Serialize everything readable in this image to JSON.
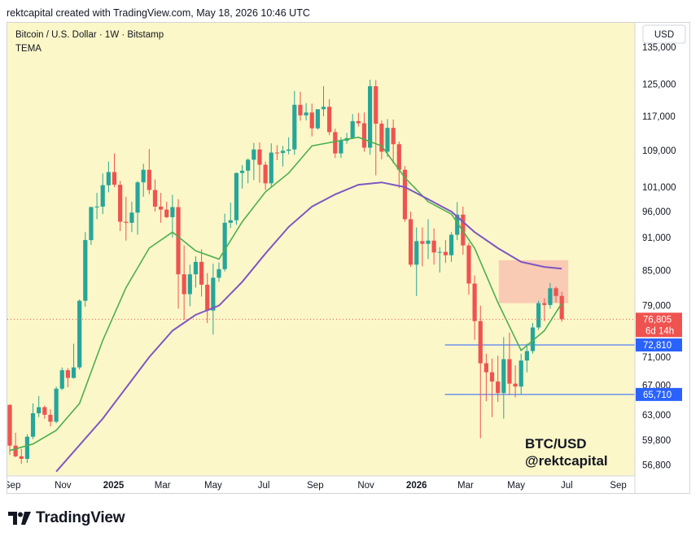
{
  "header": {
    "caption": "rektcapital created with TradingView.com, May 18, 2026 10:46 UTC"
  },
  "footer": {
    "brand": "TradingView"
  },
  "colors": {
    "background": "#fcf7c8",
    "up": "#26a69a",
    "down": "#ef5350",
    "fast_ema": "#4caf50",
    "slow_ema": "#7e57c2",
    "support": "#2962ff",
    "resistance_zone": "#f8c3b0"
  },
  "chart_data": {
    "type": "candlestick",
    "title": "Bitcoin / U.S. Dollar · 1W · Bitstamp",
    "indicator": "TEMA",
    "currency": "USD",
    "watermark": [
      "BTC/USD",
      "@rektcapital"
    ],
    "y_scale": "log",
    "ylim": [
      55500,
      142000
    ],
    "y_ticks": [
      135000,
      125000,
      117000,
      109000,
      101000,
      96000,
      91000,
      85000,
      79000,
      71000,
      67000,
      63000,
      59800,
      56800
    ],
    "x_range": [
      "2024-08-26",
      "2026-09-21"
    ],
    "x_ticks": [
      {
        "date": "2024-09-01",
        "label": "Sep",
        "bold": false
      },
      {
        "date": "2024-11-01",
        "label": "Nov",
        "bold": false
      },
      {
        "date": "2025-01-01",
        "label": "2025",
        "bold": true
      },
      {
        "date": "2025-03-01",
        "label": "Mar",
        "bold": false
      },
      {
        "date": "2025-05-01",
        "label": "May",
        "bold": false
      },
      {
        "date": "2025-07-01",
        "label": "Jul",
        "bold": false
      },
      {
        "date": "2025-09-01",
        "label": "Sep",
        "bold": false
      },
      {
        "date": "2025-11-01",
        "label": "Nov",
        "bold": false
      },
      {
        "date": "2026-01-01",
        "label": "2026",
        "bold": true
      },
      {
        "date": "2026-03-01",
        "label": "Mar",
        "bold": false
      },
      {
        "date": "2026-05-01",
        "label": "May",
        "bold": false
      },
      {
        "date": "2026-07-01",
        "label": "Jul",
        "bold": false
      },
      {
        "date": "2026-09-01",
        "label": "Sep",
        "bold": false
      }
    ],
    "first_candle_date": "2024-08-26",
    "candles": [
      [
        64300,
        64400,
        58000,
        59100
      ],
      [
        59100,
        60700,
        57700,
        57800
      ],
      [
        57800,
        58700,
        56900,
        57500
      ],
      [
        57500,
        60500,
        57000,
        60200
      ],
      [
        60200,
        64500,
        59900,
        63200
      ],
      [
        63200,
        65500,
        62700,
        64000
      ],
      [
        64000,
        64200,
        62500,
        63000
      ],
      [
        63000,
        63700,
        61500,
        62100
      ],
      [
        62100,
        66800,
        61900,
        66500
      ],
      [
        66500,
        69500,
        66300,
        69100
      ],
      [
        69100,
        69400,
        66700,
        68000
      ],
      [
        68000,
        73000,
        67900,
        69500
      ],
      [
        69500,
        80000,
        69200,
        79800
      ],
      [
        79800,
        92000,
        78800,
        90500
      ],
      [
        90500,
        97000,
        89600,
        96900
      ],
      [
        96900,
        99800,
        94500,
        97000
      ],
      [
        97000,
        103900,
        95500,
        101400
      ],
      [
        101400,
        106500,
        99900,
        104200
      ],
      [
        104200,
        108300,
        101000,
        101500
      ],
      [
        101500,
        102300,
        92200,
        94000
      ],
      [
        94000,
        99000,
        90400,
        93800
      ],
      [
        93800,
        98000,
        92000,
        95800
      ],
      [
        95800,
        102300,
        91500,
        102000
      ],
      [
        102000,
        106000,
        99000,
        104700
      ],
      [
        104700,
        109300,
        99500,
        100400
      ],
      [
        100400,
        102600,
        96000,
        97000
      ],
      [
        97000,
        99800,
        93800,
        96400
      ],
      [
        96400,
        98000,
        94700,
        94900
      ],
      [
        94900,
        99400,
        91000,
        96900
      ],
      [
        96900,
        98500,
        78500,
        84300
      ],
      [
        84300,
        89500,
        76700,
        80900
      ],
      [
        80900,
        86000,
        78900,
        84300
      ],
      [
        84300,
        87500,
        82000,
        86500
      ],
      [
        86500,
        88800,
        80500,
        82500
      ],
      [
        82500,
        84500,
        76200,
        78200
      ],
      [
        78200,
        86200,
        74400,
        83700
      ],
      [
        83700,
        86400,
        83000,
        85200
      ],
      [
        85200,
        95600,
        84800,
        93800
      ],
      [
        93800,
        97800,
        92800,
        94300
      ],
      [
        94300,
        104100,
        93400,
        104000
      ],
      [
        104000,
        105700,
        100700,
        104500
      ],
      [
        104500,
        107200,
        101800,
        106900
      ],
      [
        106900,
        110700,
        102500,
        109200
      ],
      [
        109200,
        110800,
        101900,
        105800
      ],
      [
        105800,
        106500,
        100400,
        101800
      ],
      [
        101800,
        110600,
        100900,
        108500
      ],
      [
        108500,
        110200,
        106800,
        108400
      ],
      [
        108400,
        110000,
        105400,
        108900
      ],
      [
        108900,
        112000,
        108100,
        109200
      ],
      [
        109200,
        123300,
        108000,
        119800
      ],
      [
        119800,
        123100,
        115900,
        117200
      ],
      [
        117200,
        120200,
        116000,
        117900
      ],
      [
        117900,
        120100,
        112200,
        114100
      ],
      [
        114100,
        118500,
        113800,
        118700
      ],
      [
        118700,
        124500,
        117000,
        119300
      ],
      [
        119300,
        121200,
        112500,
        113200
      ],
      [
        113200,
        114000,
        107300,
        108300
      ],
      [
        108300,
        112000,
        107300,
        111200
      ],
      [
        111200,
        113000,
        110500,
        111800
      ],
      [
        111800,
        117500,
        111600,
        115800
      ],
      [
        115800,
        117800,
        114500,
        115300
      ],
      [
        115300,
        117900,
        108700,
        109600
      ],
      [
        109600,
        126200,
        108000,
        124500
      ],
      [
        124500,
        126100,
        103500,
        115200
      ],
      [
        115200,
        116000,
        107000,
        108700
      ],
      [
        108700,
        116300,
        107500,
        114200
      ],
      [
        114200,
        116200,
        106100,
        110400
      ],
      [
        110400,
        111000,
        100800,
        104700
      ],
      [
        104700,
        105500,
        94000,
        94500
      ],
      [
        94500,
        96000,
        85600,
        86000
      ],
      [
        86000,
        92900,
        80600,
        90300
      ],
      [
        90300,
        92900,
        85700,
        89800
      ],
      [
        89800,
        94500,
        87000,
        90400
      ],
      [
        90400,
        92700,
        86000,
        88200
      ],
      [
        88200,
        89200,
        84600,
        88300
      ],
      [
        88300,
        90500,
        86300,
        87700
      ],
      [
        87700,
        92000,
        86500,
        91500
      ],
      [
        91500,
        97900,
        90500,
        95400
      ],
      [
        95400,
        97000,
        87800,
        89500
      ],
      [
        89500,
        90000,
        80800,
        82700
      ],
      [
        82700,
        84100,
        73600,
        76500
      ],
      [
        76500,
        79000,
        60000,
        70100
      ],
      [
        70100,
        71500,
        64800,
        68800
      ],
      [
        68800,
        70800,
        62700,
        67500
      ],
      [
        67500,
        71200,
        64700,
        65900
      ],
      [
        65900,
        74000,
        62500,
        70700
      ],
      [
        70700,
        74700,
        65600,
        67200
      ],
      [
        67200,
        69800,
        65300,
        66800
      ],
      [
        66800,
        71500,
        65700,
        70500
      ],
      [
        70500,
        73000,
        68800,
        71900
      ],
      [
        71900,
        76200,
        71500,
        75500
      ],
      [
        75500,
        79800,
        75100,
        79400
      ],
      [
        79400,
        80200,
        76500,
        79100
      ],
      [
        79100,
        82800,
        78500,
        81900
      ],
      [
        81900,
        82200,
        79500,
        80600
      ],
      [
        80600,
        81300,
        76400,
        76805
      ]
    ],
    "fast_ema": [
      [
        0,
        58500
      ],
      [
        4,
        59300
      ],
      [
        8,
        61000
      ],
      [
        12,
        64500
      ],
      [
        16,
        73500
      ],
      [
        20,
        82000
      ],
      [
        24,
        89000
      ],
      [
        28,
        92000
      ],
      [
        32,
        88500
      ],
      [
        36,
        87000
      ],
      [
        40,
        94000
      ],
      [
        44,
        100000
      ],
      [
        48,
        104000
      ],
      [
        52,
        110000
      ],
      [
        56,
        111000
      ],
      [
        60,
        112000
      ],
      [
        64,
        110000
      ],
      [
        68,
        103000
      ],
      [
        72,
        98000
      ],
      [
        76,
        95500
      ],
      [
        80,
        89000
      ],
      [
        84,
        79500
      ],
      [
        88,
        72000
      ],
      [
        92,
        75000
      ],
      [
        95,
        79400
      ]
    ],
    "slow_ema": [
      [
        8,
        56000
      ],
      [
        16,
        62500
      ],
      [
        24,
        71000
      ],
      [
        28,
        75000
      ],
      [
        32,
        77500
      ],
      [
        36,
        79000
      ],
      [
        40,
        83000
      ],
      [
        44,
        88000
      ],
      [
        48,
        93000
      ],
      [
        52,
        97000
      ],
      [
        56,
        99500
      ],
      [
        60,
        101500
      ],
      [
        64,
        102000
      ],
      [
        68,
        101000
      ],
      [
        72,
        98500
      ],
      [
        76,
        96000
      ],
      [
        80,
        92000
      ],
      [
        84,
        89000
      ],
      [
        88,
        86500
      ],
      [
        92,
        85600
      ],
      [
        95,
        85300
      ]
    ],
    "horizontal_levels": [
      {
        "price": 72810,
        "label": "72,810",
        "from_candle": 77
      },
      {
        "price": 65710,
        "label": "65,710",
        "from_candle": 77
      }
    ],
    "resistance_zone": {
      "from_candle": 85,
      "to_candle": 95,
      "low": 79400,
      "high": 86800
    },
    "last_price": {
      "value": 76805,
      "label": "76,805",
      "countdown": "6d 14h"
    }
  }
}
